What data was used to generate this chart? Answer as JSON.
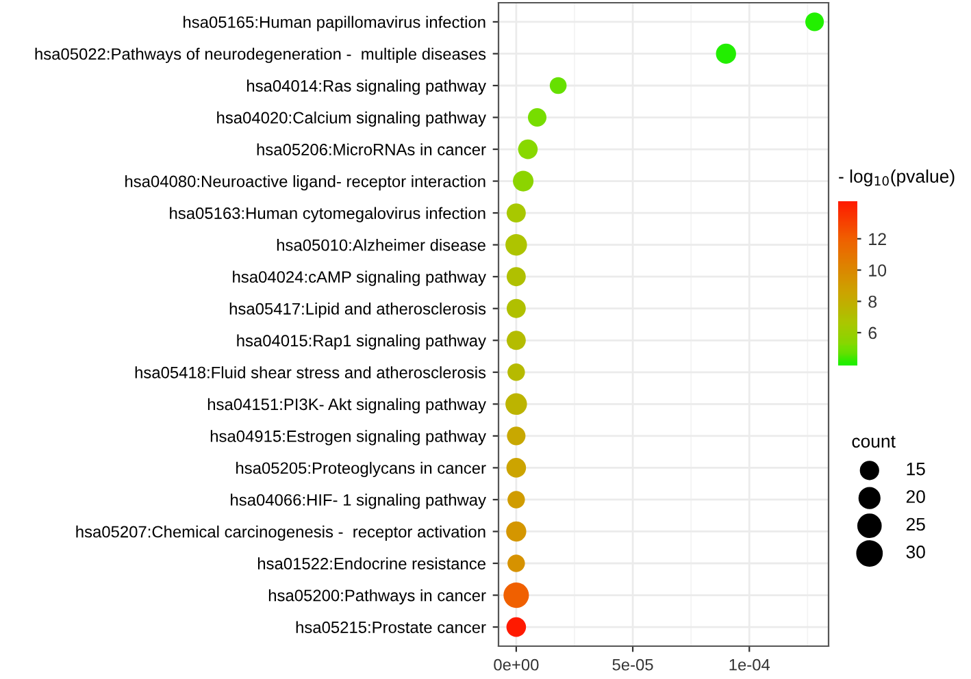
{
  "chart_data": {
    "type": "bubble",
    "clabel": "- log$_{10}$(pvalue)",
    "categories": [
      "hsa05165:Human papillomavirus infection",
      "hsa05022:Pathways of neurodegeneration -  multiple diseases",
      "hsa04014:Ras signaling pathway",
      "hsa04020:Calcium signaling pathway",
      "hsa05206:MicroRNAs in cancer",
      "hsa04080:Neuroactive ligand- receptor interaction",
      "hsa05163:Human cytomegalovirus infection",
      "hsa05010:Alzheimer disease",
      "hsa04024:cAMP signaling pathway",
      "hsa05417:Lipid and atherosclerosis",
      "hsa04015:Rap1 signaling pathway",
      "hsa05418:Fluid shear stress and atherosclerosis",
      "hsa04151:PI3K- Akt signaling pathway",
      "hsa04915:Estrogen signaling pathway",
      "hsa05205:Proteoglycans in cancer",
      "hsa04066:HIF- 1 signaling pathway",
      "hsa05207:Chemical carcinogenesis -  receptor activation",
      "hsa01522:Endocrine resistance",
      "hsa05200:Pathways in cancer",
      "hsa05215:Prostate cancer"
    ],
    "orientation": "horizontal",
    "values": [
      0.000128,
      9e-05,
      1.8e-05,
      9e-06,
      5e-06,
      3e-06,
      0,
      0,
      0,
      0,
      0,
      0,
      0,
      0,
      0,
      0,
      0,
      0,
      0,
      0
    ],
    "sizes": [
      17,
      20,
      14,
      17,
      19,
      21,
      18,
      23,
      18,
      18,
      18,
      15,
      23,
      17,
      19,
      15,
      20,
      15,
      32,
      19
    ],
    "size_legend": [
      15,
      20,
      25,
      30
    ],
    "legend_title": "count",
    "cvalues": [
      3.9,
      4.05,
      4.7,
      5.1,
      5.3,
      5.5,
      6.5,
      6.8,
      7.0,
      7.0,
      7.2,
      7.3,
      7.6,
      8.3,
      8.6,
      9.0,
      9.3,
      9.5,
      12.0,
      14.2
    ],
    "colors": [
      "#22f000",
      "#22ee00",
      "#66e000",
      "#77dd00",
      "#88d800",
      "#8cd400",
      "#a8c800",
      "#aec400",
      "#b0c000",
      "#b0c000",
      "#b4bc00",
      "#b6ba00",
      "#bcb400",
      "#c8a800",
      "#cca400",
      "#d09c00",
      "#d49600",
      "#d69200",
      "#f06000",
      "#ff1a00"
    ],
    "clim": [
      3.9,
      14.4
    ],
    "cticks": [
      6,
      8,
      10,
      12
    ],
    "xlim": [
      -7.6e-06,
      0.000134
    ],
    "xticks": [
      {
        "value": 0,
        "label": "0e+00"
      },
      {
        "value": 5e-05,
        "label": "5e-05"
      },
      {
        "value": 0.0001,
        "label": "1e-04"
      }
    ],
    "grid": true
  }
}
